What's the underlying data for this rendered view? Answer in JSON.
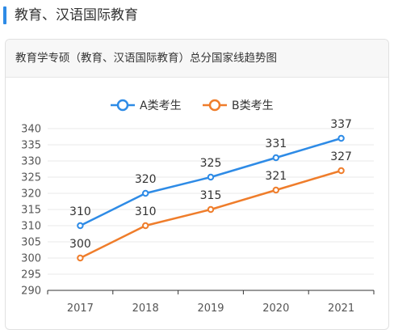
{
  "section": {
    "title": "教育、汉语国际教育"
  },
  "colors": {
    "accent": "#2e8be6",
    "seriesA": "#2e8be6",
    "seriesB": "#ef7d2b"
  },
  "chart_data": {
    "type": "line",
    "title": "教育学专硕（教育、汉语国际教育）总分国家线趋势图",
    "x": [
      "2017",
      "2018",
      "2019",
      "2020",
      "2021"
    ],
    "yticks": [
      290,
      295,
      300,
      305,
      310,
      315,
      320,
      325,
      330,
      335,
      340
    ],
    "ylim": [
      290,
      340
    ],
    "legend_position": "top",
    "grid": true,
    "series": [
      {
        "name": "A类考生",
        "color": "#2e8be6",
        "values": [
          310,
          320,
          325,
          331,
          337
        ]
      },
      {
        "name": "B类考生",
        "color": "#ef7d2b",
        "values": [
          300,
          310,
          315,
          321,
          327
        ]
      }
    ]
  }
}
